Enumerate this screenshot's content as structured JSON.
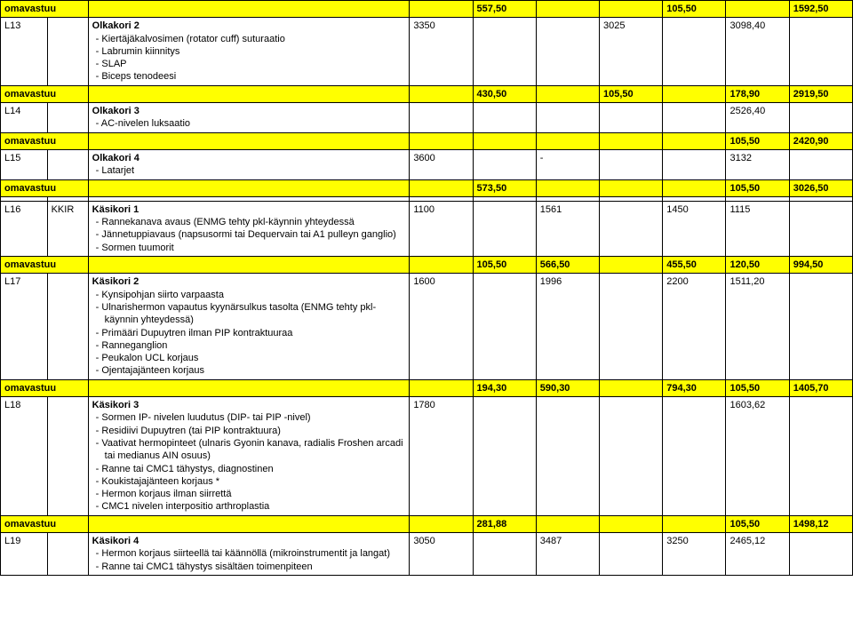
{
  "colors": {
    "highlight": "#ffff00",
    "border": "#000000",
    "text": "#000000",
    "background": "#ffffff"
  },
  "table": {
    "rows": [
      {
        "type": "omavastuu",
        "code": "",
        "kkir": "",
        "codeLabel": "omavastuu",
        "desc": "",
        "c1": "",
        "c2": "557,50",
        "c3": "",
        "c4": "",
        "c5": "105,50",
        "c6": "",
        "c7": "1592,50"
      },
      {
        "type": "entry",
        "code": "L13",
        "kkir": "",
        "title": "Olkakori 2",
        "bullets": [
          "Kiertäjäkalvosimen (rotator cuff) suturaatio",
          "Labrumin kiinnitys",
          "SLAP",
          "Biceps tenodeesi"
        ],
        "c1": "3350",
        "c2": "",
        "c3": "",
        "c4": "3025",
        "c5": "",
        "c6": "3098,40",
        "c7": ""
      },
      {
        "type": "omavastuu",
        "code": "",
        "kkir": "",
        "codeLabel": "omavastuu",
        "desc": "",
        "c1": "",
        "c2": "430,50",
        "c3": "",
        "c4": "105,50",
        "c5": "",
        "c6": "178,90",
        "c7": "2919,50"
      },
      {
        "type": "entry",
        "code": "L14",
        "kkir": "",
        "title": "Olkakori 3",
        "bullets": [
          "AC-nivelen luksaatio"
        ],
        "c1": "",
        "c2": "",
        "c3": "",
        "c4": "",
        "c5": "",
        "c6": "2526,40",
        "c7": ""
      },
      {
        "type": "omavastuu",
        "code": "",
        "kkir": "",
        "codeLabel": "omavastuu",
        "desc": "",
        "c1": "",
        "c2": "",
        "c3": "",
        "c4": "",
        "c5": "",
        "c6": "105,50",
        "c7": "2420,90"
      },
      {
        "type": "entry",
        "code": "L15",
        "kkir": "",
        "title": "Olkakori 4",
        "bullets": [
          "Latarjet"
        ],
        "c1": "3600",
        "c2": "",
        "c3": "-",
        "c4": "",
        "c5": "",
        "c6": "3132",
        "c7": ""
      },
      {
        "type": "omavastuu",
        "code": "",
        "kkir": "",
        "codeLabel": "omavastuu",
        "desc": "",
        "c1": "",
        "c2": "573,50",
        "c3": "",
        "c4": "",
        "c5": "",
        "c6": "105,50",
        "c7": "3026,50"
      },
      {
        "type": "spacer",
        "code": "",
        "kkir": "",
        "desc": "",
        "c1": "",
        "c2": "",
        "c3": "",
        "c4": "",
        "c5": "",
        "c6": "",
        "c7": ""
      },
      {
        "type": "entry",
        "code": "L16",
        "kkir": "KKIR",
        "title": "Käsikori 1",
        "bullets": [
          "Rannekanava avaus (ENMG tehty pkl-käynnin yhteydessä",
          "Jännetuppiavaus (napsusormi tai Dequervain tai A1 pulleyn ganglio)",
          "Sormen tuumorit"
        ],
        "c1": "1100",
        "c2": "",
        "c3": "1561",
        "c4": "",
        "c5": "1450",
        "c6": "1115",
        "c7": ""
      },
      {
        "type": "omavastuu",
        "code": "",
        "kkir": "",
        "codeLabel": "omavastuu",
        "desc": "",
        "c1": "",
        "c2": "105,50",
        "c3": "566,50",
        "c4": "",
        "c5": "455,50",
        "c6": "120,50",
        "c7": "994,50"
      },
      {
        "type": "entry",
        "code": "L17",
        "kkir": "",
        "title": "Käsikori 2",
        "bullets": [
          "Kynsipohjan siirto varpaasta",
          "Ulnarishermon vapautus kyynärsulkus tasolta (ENMG tehty pkl-käynnin yhteydessä)",
          "Primääri Dupuytren ilman PIP kontraktuuraa",
          "Ranneganglion",
          "Peukalon UCL korjaus",
          "Ojentajajänteen korjaus"
        ],
        "c1": "1600",
        "c2": "",
        "c3": "1996",
        "c4": "",
        "c5": "2200",
        "c6": "1511,20",
        "c7": ""
      },
      {
        "type": "omavastuu",
        "code": "",
        "kkir": "",
        "codeLabel": "omavastuu",
        "desc": "",
        "c1": "",
        "c2": "194,30",
        "c3": "590,30",
        "c4": "",
        "c5": "794,30",
        "c6": "105,50",
        "c7": "1405,70"
      },
      {
        "type": "entry",
        "code": "L18",
        "kkir": "",
        "title": "Käsikori 3",
        "bullets": [
          "Sormen IP- nivelen luudutus (DIP- tai PIP -nivel)",
          "Residiivi Dupuytren (tai PIP kontraktuura)",
          "Vaativat hermopinteet (ulnaris Gyonin kanava, radialis Froshen arcadi tai medianus AIN osuus)",
          "Ranne tai CMC1 tähystys, diagnostinen",
          "Koukistajajänteen korjaus *",
          "Hermon korjaus ilman siirrettä",
          "CMC1 nivelen interpositio arthroplastia"
        ],
        "c1": "1780",
        "c2": "",
        "c3": "",
        "c4": "",
        "c5": "",
        "c6": "1603,62",
        "c7": ""
      },
      {
        "type": "omavastuu",
        "code": "",
        "kkir": "",
        "codeLabel": "omavastuu",
        "desc": "",
        "c1": "",
        "c2": "281,88",
        "c3": "",
        "c4": "",
        "c5": "",
        "c6": "105,50",
        "c7": "1498,12"
      },
      {
        "type": "entry",
        "code": "L19",
        "kkir": "",
        "title": "Käsikori 4",
        "bullets": [
          "Hermon korjaus siirteellä tai käännöllä (mikroinstrumentit ja langat)",
          "Ranne tai CMC1 tähystys sisältäen toimenpiteen"
        ],
        "c1": "3050",
        "c2": "",
        "c3": "3487",
        "c4": "",
        "c5": "3250",
        "c6": "2465,12",
        "c7": ""
      }
    ]
  }
}
